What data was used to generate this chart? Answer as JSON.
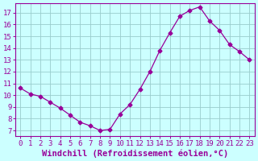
{
  "x_values": [
    0,
    1,
    2,
    3,
    4,
    5,
    6,
    7,
    8,
    9,
    10,
    11,
    12,
    13,
    14,
    15,
    16,
    17,
    18,
    19,
    20,
    21,
    22,
    23
  ],
  "y_values": [
    10.6,
    10.1,
    9.9,
    9.4,
    8.9,
    8.3,
    7.7,
    7.4,
    7.0,
    7.1,
    8.4,
    9.2,
    10.5,
    12.0,
    13.8,
    15.3,
    16.7,
    17.2,
    17.5,
    16.3,
    15.5,
    14.3,
    13.7,
    13.0
  ],
  "line_color": "#990099",
  "marker": "D",
  "marker_size": 2.5,
  "background_color": "#ccffff",
  "grid_color": "#99cccc",
  "xlabel": "Windchill (Refroidissement éolien,°C)",
  "xlim": [
    -0.5,
    23.5
  ],
  "ylim": [
    6.5,
    17.8
  ],
  "yticks": [
    7,
    8,
    9,
    10,
    11,
    12,
    13,
    14,
    15,
    16,
    17
  ],
  "xtick_fontsize": 6.5,
  "ytick_fontsize": 6.5,
  "xlabel_fontsize": 7.5,
  "tick_color": "#990099",
  "label_color": "#990099",
  "spine_color": "#990099"
}
